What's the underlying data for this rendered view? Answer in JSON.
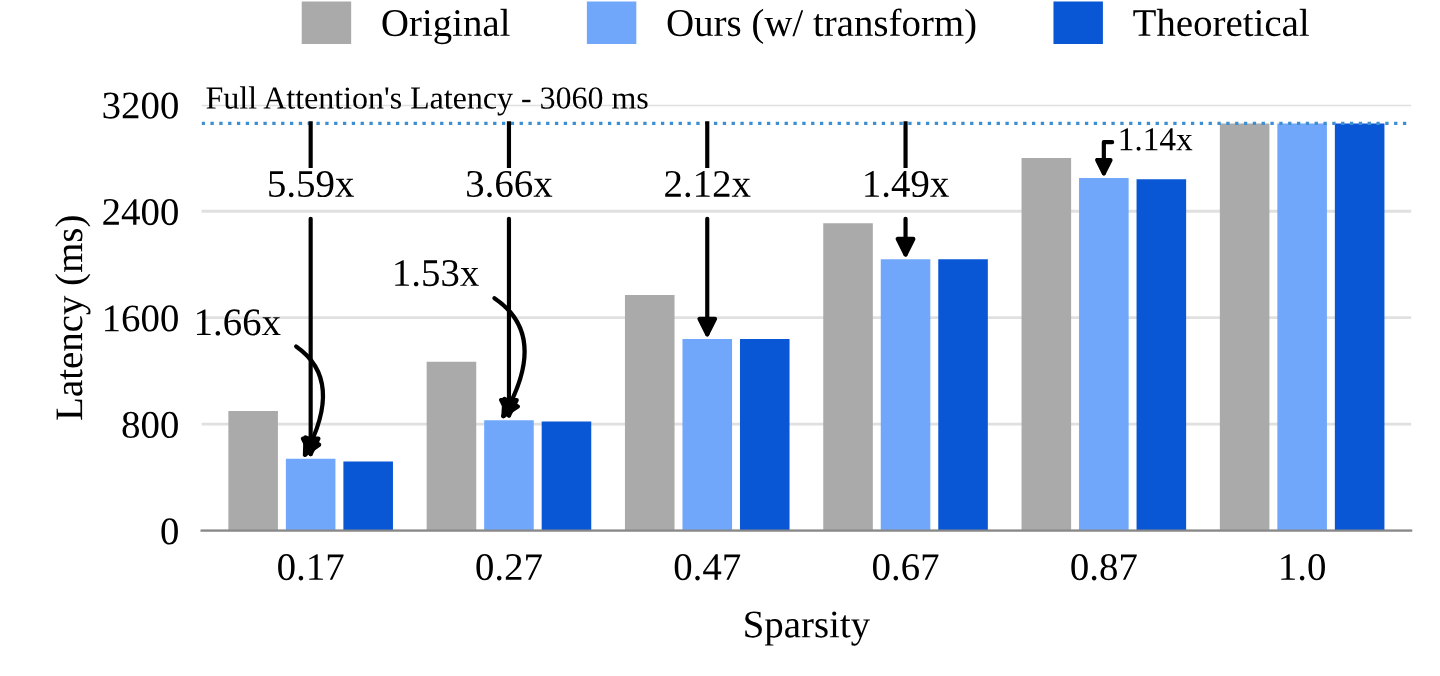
{
  "chart_data": {
    "type": "bar",
    "xlabel": "Sparsity",
    "ylabel": "Latency (ms)",
    "categories": [
      "0.17",
      "0.27",
      "0.47",
      "0.67",
      "0.87",
      "1.0"
    ],
    "series": [
      {
        "name": "Original",
        "color": "#aaaaaa",
        "values": [
          900,
          1270,
          1770,
          2310,
          2800,
          3060
        ]
      },
      {
        "name": "Ours (w/ transform)",
        "color": "#70a7fb",
        "values": [
          540,
          830,
          1440,
          2040,
          2650,
          3060
        ]
      },
      {
        "name": "Theoretical",
        "color": "#0a57d6",
        "values": [
          520,
          820,
          1440,
          2040,
          2640,
          3060
        ]
      }
    ],
    "ylim": [
      0,
      3200
    ],
    "yticks": [
      0,
      800,
      1600,
      2400,
      3200
    ],
    "grid": "y",
    "legend": "top",
    "ref_lines": [
      {
        "axis": "y",
        "value": 3060,
        "label": "Full Attention's Latency - 3060 ms",
        "color": "#3d8fd1",
        "line_style": "dotted"
      }
    ],
    "annotations": [
      {
        "text": "1.66x",
        "x": "0.17",
        "y": 540
      },
      {
        "text": "5.59x",
        "x": "0.17",
        "y": 540
      },
      {
        "text": "1.53x",
        "x": "0.27",
        "y": 830
      },
      {
        "text": "3.66x",
        "x": "0.27",
        "y": 830
      },
      {
        "text": "2.12x",
        "x": "0.47",
        "y": 1440
      },
      {
        "text": "1.49x",
        "x": "0.67",
        "y": 2040
      },
      {
        "text": "1.14x",
        "x": "0.87",
        "y": 2650
      }
    ]
  }
}
